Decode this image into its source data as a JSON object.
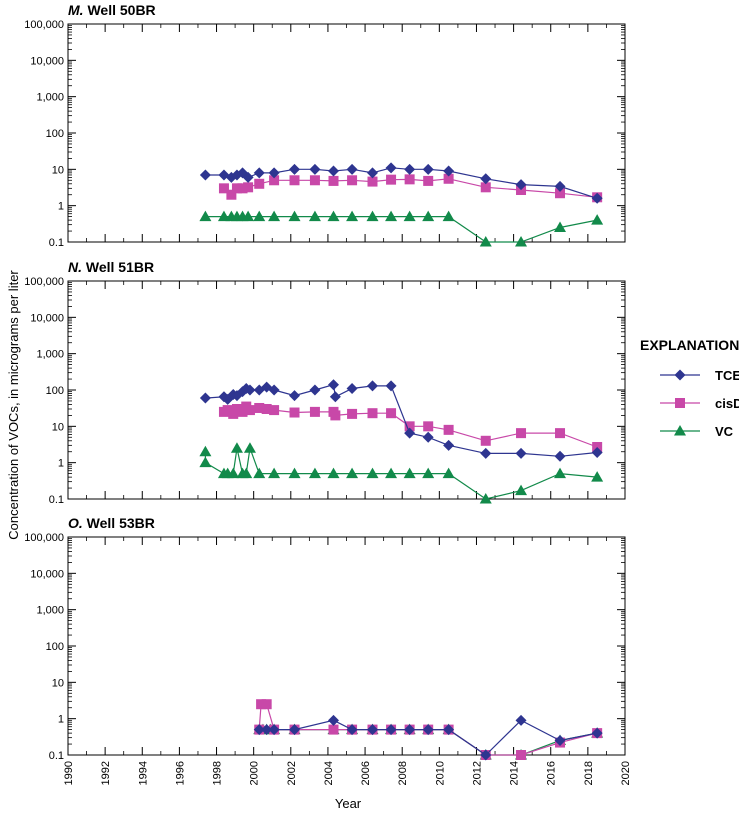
{
  "figure": {
    "xlabel": "Year",
    "ylabel": "Concentration of VOCs, in micrograms per liter",
    "legend_title": "EXPLANATION"
  },
  "colors": {
    "TCE": "#2e3590",
    "cisDCE": "#c848a8",
    "VC": "#128a4a"
  },
  "chart_data": [
    {
      "type": "line",
      "title": "M. Well 50BR",
      "title_letter": "M.",
      "title_rest": " Well 50BR",
      "x_ticks": [
        "1990",
        "1992",
        "1994",
        "1996",
        "1998",
        "2000",
        "2002",
        "2004",
        "2006",
        "2008",
        "2010",
        "2012",
        "2014",
        "2016",
        "2018",
        "2020"
      ],
      "y_ticks": [
        "0.1",
        "1",
        "10",
        "100",
        "1,000",
        "10,000",
        "100,000"
      ],
      "xlim": [
        1990,
        2020
      ],
      "ylim": [
        0.1,
        100000
      ],
      "yscale": "log",
      "series": [
        {
          "name": "TCE",
          "marker": "diamond",
          "x": [
            1997.4,
            1998.4,
            1998.8,
            1999.1,
            1999.4,
            1999.7,
            2000.3,
            2001.1,
            2002.2,
            2003.3,
            2004.3,
            2005.3,
            2006.4,
            2007.4,
            2008.4,
            2009.4,
            2010.5,
            2012.5,
            2014.4,
            2016.5,
            2018.5
          ],
          "y": [
            7,
            7,
            6,
            7,
            8,
            6,
            8,
            8,
            10,
            10,
            9,
            10,
            8,
            11,
            10,
            10,
            9,
            5.5,
            3.8,
            3.4,
            1.6
          ]
        },
        {
          "name": "cisDCE",
          "marker": "square",
          "x": [
            1998.4,
            1998.8,
            1999.1,
            1999.4,
            1999.7,
            2000.3,
            2001.1,
            2002.2,
            2003.3,
            2004.3,
            2005.3,
            2006.4,
            2007.4,
            2008.4,
            2009.4,
            2010.5,
            2012.5,
            2014.4,
            2016.5,
            2018.5
          ],
          "y": [
            3,
            2,
            3,
            3,
            3.2,
            4,
            5,
            5,
            5,
            4.8,
            5,
            4.6,
            5.2,
            5.3,
            4.8,
            5.5,
            3.2,
            2.7,
            2.2,
            1.7
          ]
        },
        {
          "name": "VC",
          "marker": "triangle",
          "x": [
            1997.4,
            1998.4,
            1998.8,
            1999.1,
            1999.4,
            1999.7,
            2000.3,
            2001.1,
            2002.2,
            2003.3,
            2004.3,
            2005.3,
            2006.4,
            2007.4,
            2008.4,
            2009.4,
            2010.5,
            2012.5,
            2014.4,
            2016.5,
            2018.5
          ],
          "y": [
            0.5,
            0.5,
            0.5,
            0.5,
            0.5,
            0.5,
            0.5,
            0.5,
            0.5,
            0.5,
            0.5,
            0.5,
            0.5,
            0.5,
            0.5,
            0.5,
            0.5,
            0.1,
            0.1,
            0.25,
            0.4
          ]
        }
      ]
    },
    {
      "type": "line",
      "title": "N. Well 51BR",
      "title_letter": "N.",
      "title_rest": " Well 51BR",
      "x_ticks": [
        "1990",
        "1992",
        "1994",
        "1996",
        "1998",
        "2000",
        "2002",
        "2004",
        "2006",
        "2008",
        "2010",
        "2012",
        "2014",
        "2016",
        "2018",
        "2020"
      ],
      "y_ticks": [
        "0.1",
        "1",
        "10",
        "100",
        "1,000",
        "10,000",
        "100,000"
      ],
      "xlim": [
        1990,
        2020
      ],
      "ylim": [
        0.1,
        100000
      ],
      "yscale": "log",
      "series": [
        {
          "name": "TCE",
          "marker": "diamond",
          "x": [
            1997.4,
            1998.4,
            1998.6,
            1998.9,
            1999.1,
            1999.4,
            1999.6,
            1999.8,
            2000.3,
            2000.7,
            2001.1,
            2002.2,
            2003.3,
            2004.3,
            2004.4,
            2005.3,
            2006.4,
            2007.4,
            2008.4,
            2009.4,
            2010.5,
            2012.5,
            2014.4,
            2016.5,
            2018.5
          ],
          "y": [
            60,
            65,
            55,
            75,
            70,
            90,
            110,
            100,
            100,
            120,
            100,
            70,
            100,
            140,
            65,
            110,
            130,
            130,
            6.5,
            5,
            3,
            1.8,
            1.8,
            1.5,
            1.9
          ]
        },
        {
          "name": "cisDCE",
          "marker": "square",
          "x": [
            1998.4,
            1998.6,
            1998.9,
            1999.1,
            1999.4,
            1999.6,
            1999.8,
            2000.3,
            2000.7,
            2001.1,
            2002.2,
            2003.3,
            2004.3,
            2004.4,
            2005.3,
            2006.4,
            2007.4,
            2008.4,
            2009.4,
            2010.5,
            2012.5,
            2014.4,
            2016.5,
            2018.5
          ],
          "y": [
            25,
            28,
            22,
            30,
            25,
            35,
            28,
            32,
            30,
            28,
            24,
            25,
            25,
            20,
            22,
            23,
            23,
            10,
            10,
            8,
            4,
            6.5,
            6.5,
            2.7
          ]
        },
        {
          "name": "VC",
          "marker": "triangle",
          "x": [
            1997.4,
            1997.4,
            1998.4,
            1998.6,
            1998.9,
            1999.1,
            1999.4,
            1999.6,
            1999.8,
            2000.3,
            2001.1,
            2002.2,
            2003.3,
            2004.3,
            2005.3,
            2006.4,
            2007.4,
            2008.4,
            2009.4,
            2010.5,
            2012.5,
            2014.4,
            2016.5,
            2018.5
          ],
          "y": [
            2,
            1,
            0.5,
            0.5,
            0.5,
            2.5,
            0.5,
            0.5,
            2.5,
            0.5,
            0.5,
            0.5,
            0.5,
            0.5,
            0.5,
            0.5,
            0.5,
            0.5,
            0.5,
            0.5,
            0.1,
            0.17,
            0.5,
            0.4
          ]
        }
      ]
    },
    {
      "type": "line",
      "title": "O. Well 53BR",
      "title_letter": "O.",
      "title_rest": " Well 53BR",
      "x_ticks": [
        "1990",
        "1992",
        "1994",
        "1996",
        "1998",
        "2000",
        "2002",
        "2004",
        "2006",
        "2008",
        "2010",
        "2012",
        "2014",
        "2016",
        "2018",
        "2020"
      ],
      "y_ticks": [
        "0.1",
        "1",
        "10",
        "100",
        "1,000",
        "10,000",
        "100,000"
      ],
      "xlim": [
        1990,
        2020
      ],
      "ylim": [
        0.1,
        100000
      ],
      "yscale": "log",
      "series": [
        {
          "name": "TCE",
          "marker": "diamond",
          "x": [
            2000.3,
            2000.7,
            2001.1,
            2002.2,
            2004.3,
            2005.3,
            2006.4,
            2007.4,
            2008.4,
            2009.4,
            2010.5,
            2012.5,
            2014.4,
            2016.5,
            2018.5
          ],
          "y": [
            0.5,
            0.5,
            0.5,
            0.5,
            0.9,
            0.5,
            0.5,
            0.5,
            0.5,
            0.5,
            0.5,
            0.1,
            0.9,
            0.25,
            0.4
          ]
        },
        {
          "name": "cisDCE",
          "marker": "square",
          "x": [
            2000.3,
            2000.4,
            2000.7,
            2001.1,
            2002.2,
            2004.3,
            2005.3,
            2006.4,
            2007.4,
            2008.4,
            2009.4,
            2010.5,
            2012.5,
            2014.4,
            2016.5,
            2018.5
          ],
          "y": [
            0.5,
            2.5,
            2.5,
            0.5,
            0.5,
            0.5,
            0.5,
            0.5,
            0.5,
            0.5,
            0.5,
            0.5,
            0.1,
            0.1,
            0.22,
            0.4
          ]
        },
        {
          "name": "VC",
          "marker": "triangle",
          "x": [
            2000.3,
            2000.5,
            2000.7,
            2000.9,
            2001.1,
            2002.2,
            2004.3,
            2005.3,
            2006.4,
            2007.4,
            2008.4,
            2009.4,
            2010.5,
            2012.5,
            2014.4,
            2016.5,
            2018.5
          ],
          "y": [
            0.5,
            0.5,
            0.5,
            0.5,
            0.5,
            0.5,
            0.5,
            0.5,
            0.5,
            0.5,
            0.5,
            0.5,
            0.5,
            0.1,
            0.1,
            0.25,
            0.4
          ]
        }
      ]
    }
  ],
  "legend": [
    {
      "name": "TCE",
      "label": "TCE",
      "marker": "diamond"
    },
    {
      "name": "cisDCE",
      "label": "cisDCE",
      "marker": "square"
    },
    {
      "name": "VC",
      "label": "VC",
      "marker": "triangle"
    }
  ]
}
